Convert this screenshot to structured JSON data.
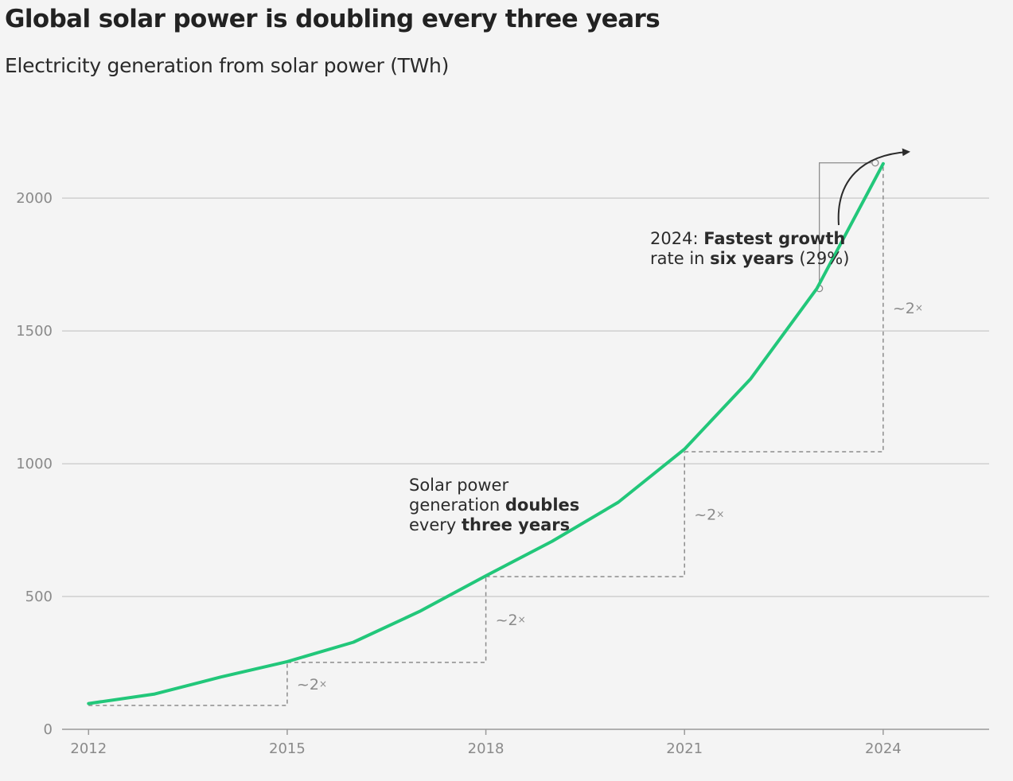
{
  "title": "Global solar power is doubling every three years",
  "subtitle": "Electricity generation from solar power (TWh)",
  "chart_data": {
    "type": "line",
    "title": "Global solar power is doubling every three years",
    "subtitle": "Electricity generation from solar power (TWh)",
    "x": [
      2012,
      2013,
      2014,
      2015,
      2016,
      2017,
      2018,
      2019,
      2020,
      2021,
      2022,
      2023,
      2024
    ],
    "series": [
      {
        "values": [
          97,
          133,
          197,
          255,
          328,
          444,
          578,
          708,
          855,
          1055,
          1320,
          1660,
          2130
        ],
        "color": "#22c77a"
      }
    ],
    "xticks": [
      2012,
      2015,
      2018,
      2021,
      2024
    ],
    "xtick_labels": [
      "2012",
      "2015",
      "2018",
      "2021",
      "2024"
    ],
    "yticks": [
      0,
      500,
      1000,
      1500,
      2000
    ],
    "ytick_labels": [
      "0",
      "500",
      "1000",
      "1500",
      "2000"
    ],
    "xlim": [
      2011.6,
      2025.6
    ],
    "ylim": [
      0,
      2300
    ],
    "grid": "horizontal",
    "doubling_steps": [
      {
        "from_year": 2012,
        "to_year": 2015,
        "from_value": 90,
        "to_value": 252,
        "label": "~2",
        "label_sup": "×"
      },
      {
        "from_year": 2015,
        "to_year": 2018,
        "from_value": 252,
        "to_value": 575,
        "label": "~2",
        "label_sup": "×"
      },
      {
        "from_year": 2018,
        "to_year": 2021,
        "from_value": 575,
        "to_value": 1045,
        "label": "~2",
        "label_sup": "×"
      },
      {
        "from_year": 2021,
        "to_year": 2024,
        "from_value": 1045,
        "to_value": 2130,
        "label": "~2",
        "label_sup": "×"
      }
    ],
    "annotations": {
      "doubling_note": {
        "lines": [
          [
            {
              "text": "Solar power",
              "bold": false
            }
          ],
          [
            {
              "text": "generation ",
              "bold": false
            },
            {
              "text": "doubles",
              "bold": true
            }
          ],
          [
            {
              "text": "every ",
              "bold": false
            },
            {
              "text": "three years",
              "bold": true
            }
          ]
        ]
      },
      "growth_note": {
        "lines": [
          [
            {
              "text": "2024: ",
              "bold": false
            },
            {
              "text": "Fastest growth",
              "bold": true
            }
          ],
          [
            {
              "text": "rate in ",
              "bold": false
            },
            {
              "text": "six years",
              "bold": true
            },
            {
              "text": " (29%)",
              "bold": false
            }
          ]
        ],
        "bracket": {
          "from_year": 2023,
          "to_year": 2024,
          "from_value": 1660,
          "to_value": 2130
        }
      }
    }
  }
}
